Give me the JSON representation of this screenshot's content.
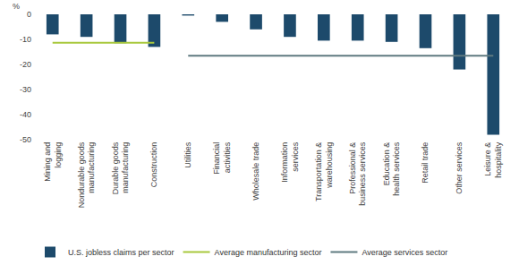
{
  "chart_data": {
    "type": "bar",
    "y_label": "%",
    "categories": [
      "Mining and logging",
      "Nondurable goods manufacturing",
      "Durable goods manufacturing",
      "Construction",
      "Utilities",
      "Financial activities",
      "Wholesale trade",
      "Information services",
      "Transportation & warehousing",
      "Professional & business services",
      "Education & health services",
      "Retail trade",
      "Other services",
      "Leisure & hospitality"
    ],
    "series": [
      {
        "name": "U.S. jobless claims per sector",
        "type": "bar",
        "color": "#1d4a6b",
        "values": [
          -8,
          -9,
          -11.5,
          -13,
          -0.5,
          -3,
          -6,
          -9,
          -10.5,
          -10.5,
          -11,
          -13.5,
          -22,
          -48
        ]
      },
      {
        "name": "Average manufacturing sector",
        "type": "line",
        "color": "#a8c83c",
        "values": [
          -11.3,
          -11.3,
          -11.3,
          -11.3,
          null,
          null,
          null,
          null,
          null,
          null,
          null,
          null,
          null,
          null
        ]
      },
      {
        "name": "Average services sector",
        "type": "line",
        "color": "#5f7a80",
        "values": [
          null,
          null,
          null,
          null,
          -16.5,
          -16.5,
          -16.5,
          -16.5,
          -16.5,
          -16.5,
          -16.5,
          -16.5,
          -16.5,
          -16.5
        ]
      }
    ],
    "ylim": [
      -50,
      0
    ],
    "yticks": [
      0,
      -10,
      -20,
      -30,
      -40,
      -50
    ],
    "grid": false,
    "legend": "bottom"
  }
}
